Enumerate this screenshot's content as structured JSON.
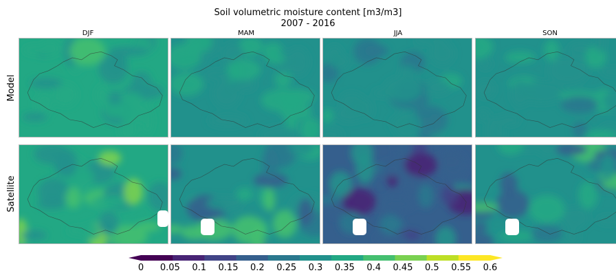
{
  "chart_data": {
    "type": "heatmap",
    "title": "Soil volumetric moisture content [m3/m3]",
    "subtitle": "2007 - 2016",
    "columns": [
      "DJF",
      "MAM",
      "JJA",
      "SON"
    ],
    "rows": [
      "Model",
      "Satellite"
    ],
    "colorbar": {
      "ticks": [
        0,
        0.05,
        0.1,
        0.15,
        0.2,
        0.25,
        0.3,
        0.35,
        0.4,
        0.45,
        0.5,
        0.55,
        0.6
      ],
      "tick_labels": [
        "0",
        "0.05",
        "0.1",
        "0.15",
        "0.2",
        "0.25",
        "0.3",
        "0.35",
        "0.4",
        "0.45",
        "0.5",
        "0.55",
        "0.6"
      ],
      "colors": [
        "#440154",
        "#482475",
        "#414487",
        "#355f8d",
        "#2a788e",
        "#21918c",
        "#22a884",
        "#44bf70",
        "#7ad151",
        "#bddf26",
        "#fde725"
      ],
      "extend": "both"
    },
    "panels": [
      {
        "row": "Model",
        "column": "DJF",
        "mean_value": 0.34
      },
      {
        "row": "Model",
        "column": "MAM",
        "mean_value": 0.32
      },
      {
        "row": "Model",
        "column": "JJA",
        "mean_value": 0.29
      },
      {
        "row": "Model",
        "column": "SON",
        "mean_value": 0.31
      },
      {
        "row": "Satellite",
        "column": "DJF",
        "mean_value": 0.37
      },
      {
        "row": "Satellite",
        "column": "MAM",
        "mean_value": 0.3
      },
      {
        "row": "Satellite",
        "column": "JJA",
        "mean_value": 0.2
      },
      {
        "row": "Satellite",
        "column": "SON",
        "mean_value": 0.29
      }
    ]
  }
}
